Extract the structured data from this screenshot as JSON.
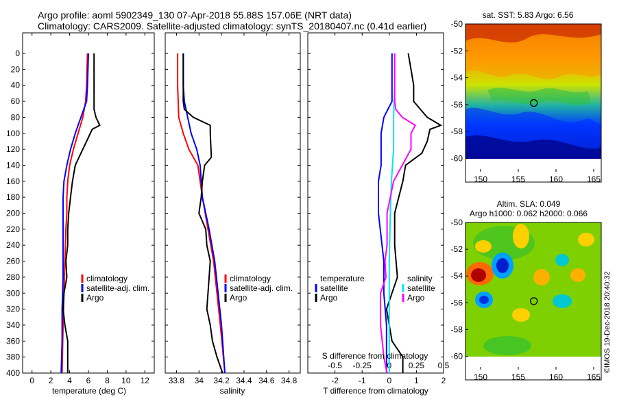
{
  "title": {
    "line1": "Argo profile: aoml 5902349_130 07-Apr-2018 55.88S 157.06E (NRT data)",
    "line2": "Climatology: CARS2009. Satellite-adjusted climatology: synTS_20180407.nc (0.41d earlier)"
  },
  "colors": {
    "climatology": "#ff0000",
    "satellite": "#0000ff",
    "argo": "#000000",
    "sat_s": "#00e5ff",
    "sal_diff": "#ff00ff"
  },
  "chart_data": [
    {
      "type": "line",
      "name": "temperature",
      "xlabel": "temperature (deg C)",
      "xlim": [
        -1,
        13
      ],
      "ylim": [
        0,
        400
      ],
      "xticks": [
        "0",
        "2",
        "4",
        "6",
        "8",
        "10",
        "12"
      ],
      "yticks": [
        "0",
        "20",
        "40",
        "60",
        "80",
        "100",
        "120",
        "140",
        "160",
        "180",
        "200",
        "220",
        "240",
        "260",
        "280",
        "300",
        "320",
        "340",
        "360",
        "380",
        "400"
      ],
      "legend": [
        "climatology",
        "satellite-adj. clim.",
        "Argo"
      ],
      "series": [
        {
          "name": "climatology",
          "depth": [
            0,
            40,
            60,
            80,
            100,
            120,
            140,
            160,
            180,
            200,
            220,
            260,
            300,
            340,
            400
          ],
          "values": [
            5.9,
            5.8,
            5.7,
            5.4,
            4.9,
            4.4,
            4.0,
            3.8,
            3.7,
            3.7,
            3.6,
            3.5,
            3.4,
            3.3,
            3.2
          ]
        },
        {
          "name": "satellite-adj. clim.",
          "depth": [
            0,
            40,
            60,
            80,
            100,
            120,
            140,
            160,
            180,
            200,
            240,
            280,
            320,
            360,
            400
          ],
          "values": [
            6.0,
            5.9,
            5.8,
            5.2,
            4.6,
            4.1,
            3.7,
            3.4,
            3.3,
            3.3,
            3.3,
            3.3,
            3.2,
            3.2,
            3.1
          ]
        },
        {
          "name": "Argo",
          "depth": [
            0,
            50,
            70,
            80,
            90,
            95,
            110,
            125,
            140,
            160,
            180,
            200,
            220,
            240,
            260,
            280,
            300,
            320,
            340,
            360,
            400
          ],
          "values": [
            6.6,
            6.6,
            6.6,
            6.8,
            7.2,
            6.4,
            5.8,
            5.2,
            4.6,
            4.3,
            4.1,
            3.9,
            3.8,
            3.8,
            3.6,
            3.7,
            3.4,
            3.3,
            3.5,
            3.8,
            3.8
          ]
        }
      ]
    },
    {
      "type": "line",
      "name": "salinity",
      "xlabel": "salinity",
      "xlim": [
        33.7,
        34.9
      ],
      "ylim": [
        0,
        400
      ],
      "xticks": [
        "33.8",
        "34",
        "34.2",
        "34.4",
        "34.6",
        "34.8"
      ],
      "legend": [
        "climatology",
        "satellite-adj. clim.",
        "Argo"
      ],
      "series": [
        {
          "name": "climatology",
          "depth": [
            0,
            40,
            80,
            100,
            120,
            140,
            180,
            220,
            260,
            300,
            340,
            400
          ],
          "values": [
            33.81,
            33.81,
            33.82,
            33.86,
            33.91,
            33.99,
            34.03,
            34.08,
            34.13,
            34.16,
            34.19,
            34.23
          ]
        },
        {
          "name": "satellite-adj. clim.",
          "depth": [
            0,
            40,
            60,
            80,
            100,
            120,
            140,
            180,
            220,
            260,
            300,
            340,
            400
          ],
          "values": [
            33.86,
            33.86,
            33.87,
            33.9,
            33.93,
            33.98,
            34.01,
            34.03,
            34.09,
            34.14,
            34.17,
            34.2,
            34.23
          ]
        },
        {
          "name": "Argo",
          "depth": [
            0,
            60,
            70,
            80,
            90,
            100,
            130,
            140,
            160,
            180,
            200,
            220,
            240,
            260,
            300,
            320,
            340,
            360,
            380,
            400
          ],
          "values": [
            33.86,
            33.86,
            33.87,
            33.95,
            34.1,
            34.1,
            34.11,
            34.05,
            34.03,
            34.02,
            34.0,
            34.06,
            34.07,
            34.1,
            34.08,
            34.07,
            34.1,
            34.12,
            34.16,
            34.21
          ]
        }
      ]
    },
    {
      "type": "line",
      "name": "difference",
      "xlabel": "T difference from climatology",
      "xlim": [
        -3,
        2
      ],
      "ylim": [
        0,
        400
      ],
      "xticks": [
        "-2",
        "-1",
        "0",
        "1",
        "2"
      ],
      "xlabel2": "S difference from climatology",
      "s_xlim": [
        -0.75,
        0.5
      ],
      "s_xticks": [
        "-0.5",
        "-0.25",
        "0",
        "0.25",
        "0.5"
      ],
      "legend_t": {
        "title": "temperature",
        "items": [
          "satellite",
          "Argo"
        ]
      },
      "legend_s": {
        "title": "salinity",
        "items": [
          "satellite",
          "Argo"
        ]
      },
      "series": [
        {
          "name": "T satellite",
          "depth": [
            0,
            40,
            60,
            80,
            100,
            120,
            140,
            160,
            200,
            260,
            300,
            340,
            400
          ],
          "values": [
            0.1,
            0.1,
            0.1,
            -0.2,
            -0.3,
            -0.3,
            -0.3,
            -0.4,
            -0.4,
            -0.2,
            -0.2,
            -0.1,
            -0.1
          ]
        },
        {
          "name": "T Argo",
          "depth": [
            0,
            20,
            40,
            60,
            80,
            90,
            95,
            110,
            125,
            140,
            160,
            200,
            240,
            280,
            320,
            360,
            380,
            400
          ],
          "values": [
            0.7,
            0.8,
            0.9,
            0.9,
            1.4,
            1.9,
            1.5,
            1.4,
            1.2,
            0.6,
            0.5,
            0.2,
            0.2,
            0.3,
            -0.1,
            0.1,
            0.5,
            0.5
          ]
        },
        {
          "name": "S satellite",
          "depth": [
            0,
            40,
            80,
            120,
            160,
            200,
            260,
            320,
            400
          ],
          "values": [
            0.05,
            0.05,
            0.04,
            0.04,
            0.02,
            0.01,
            0.0,
            0.0,
            0.0
          ]
        },
        {
          "name": "S Argo",
          "depth": [
            0,
            60,
            70,
            80,
            90,
            100,
            120,
            140,
            160,
            200,
            240,
            260,
            280,
            300,
            340,
            380,
            400
          ],
          "values": [
            0.05,
            0.05,
            0.06,
            0.12,
            0.24,
            0.2,
            0.2,
            0.12,
            0.04,
            -0.02,
            -0.02,
            -0.04,
            -0.03,
            -0.08,
            -0.08,
            -0.05,
            -0.02
          ]
        }
      ]
    },
    {
      "type": "heatmap",
      "name": "sst-map",
      "title": "sat. SST: 5.83 Argo: 6.56",
      "xticks": [
        "150",
        "155",
        "160",
        "165"
      ],
      "yticks": [
        "-50",
        "-52",
        "-54",
        "-56",
        "-58",
        "-60"
      ],
      "xlim": [
        148,
        166
      ],
      "ylim": [
        -61,
        -50
      ],
      "profile": {
        "lon": 157.06,
        "lat": -55.88
      }
    },
    {
      "type": "heatmap",
      "name": "sla-map",
      "title": "Altim. SLA: 0.049",
      "subtitle": "Argo h1000: 0.062 h2000: 0.066",
      "xticks": [
        "150",
        "155",
        "160",
        "165"
      ],
      "yticks": [
        "-50",
        "-52",
        "-54",
        "-56",
        "-58",
        "-60"
      ],
      "xlim": [
        148,
        166
      ],
      "ylim": [
        -61,
        -50
      ],
      "profile": {
        "lon": 157.06,
        "lat": -55.88
      }
    }
  ],
  "credit": "©IMOS 19-Dec-2018 20:40:32"
}
